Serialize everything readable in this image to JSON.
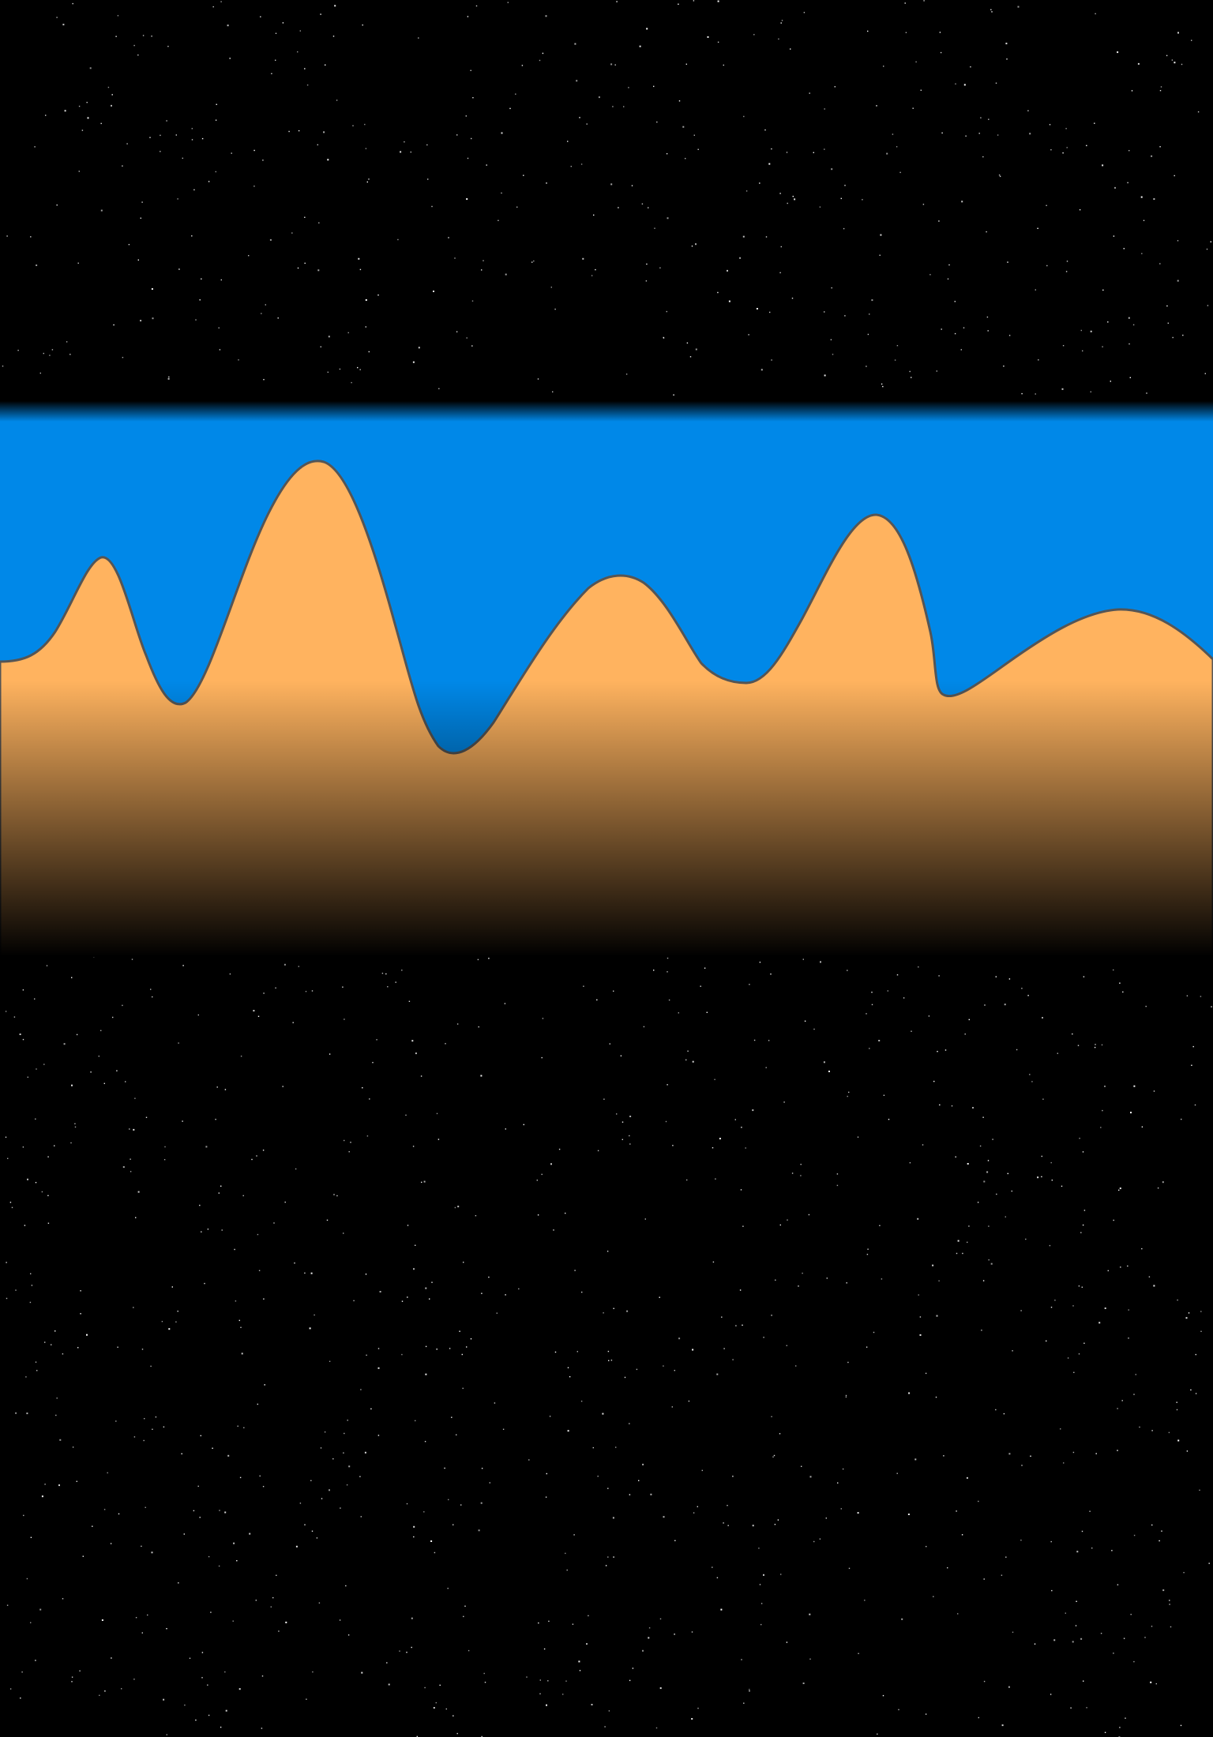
{
  "scene": {
    "background_color": "#000000",
    "star_color": "#ffffff",
    "sky_color": "#0088e8",
    "terrain_color": "#ffb35f",
    "terrain_outline_color": "#555555"
  }
}
